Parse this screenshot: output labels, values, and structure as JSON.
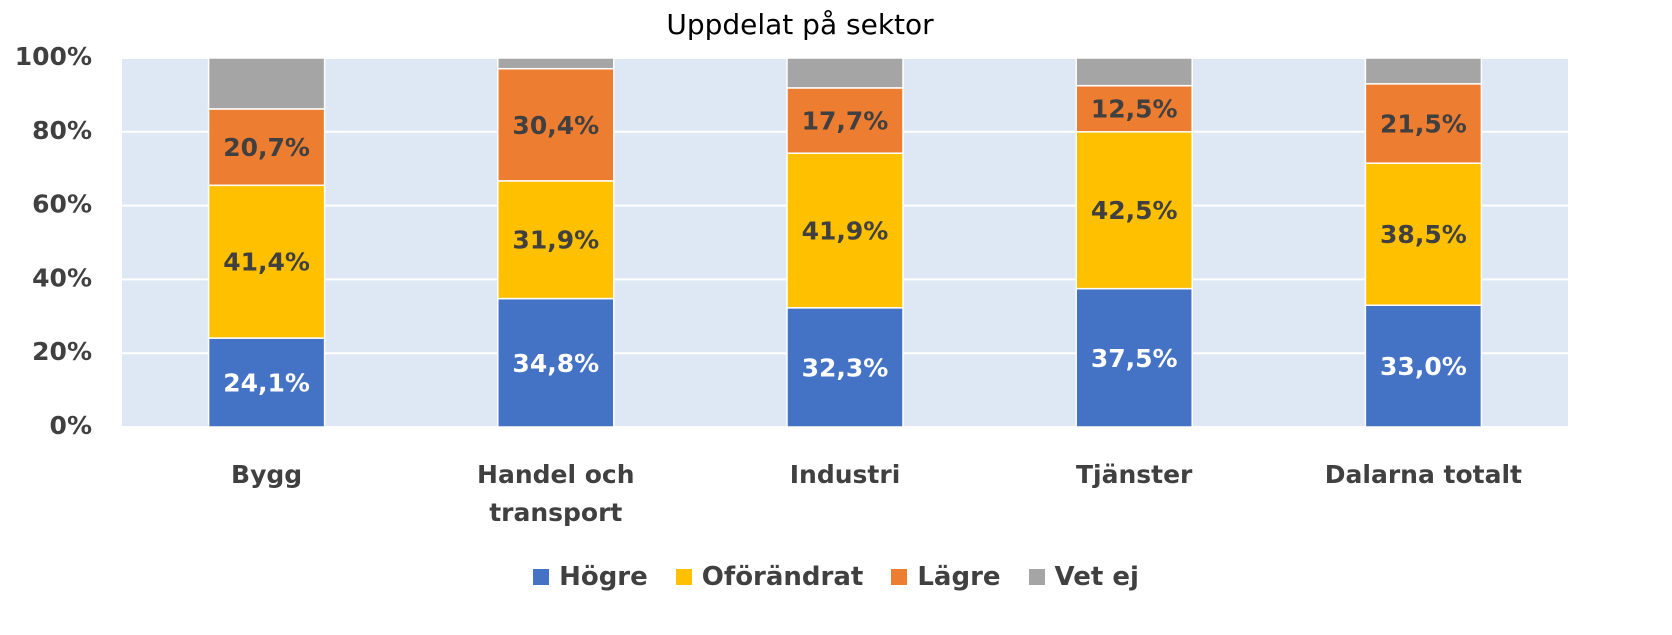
{
  "chart_data": {
    "type": "bar",
    "stacked": true,
    "title": "Uppdelat på sektor",
    "categories": [
      "Bygg",
      "Handel och transport",
      "Industri",
      "Tjänster",
      "Dalarna totalt"
    ],
    "series": [
      {
        "name": "Högre",
        "color": "#4472c4",
        "values": [
          24.1,
          34.8,
          32.3,
          37.5,
          33.0
        ],
        "value_labels": [
          "24,1%",
          "34,8%",
          "32,3%",
          "37,5%",
          "33,0%"
        ]
      },
      {
        "name": "Oförändrat",
        "color": "#ffc000",
        "values": [
          41.4,
          31.9,
          41.9,
          42.5,
          38.5
        ],
        "value_labels": [
          "41,4%",
          "31,9%",
          "41,9%",
          "42,5%",
          "38,5%"
        ]
      },
      {
        "name": "Lägre",
        "color": "#ed7d31",
        "values": [
          20.7,
          30.4,
          17.7,
          12.5,
          21.5
        ],
        "value_labels": [
          "20,7%",
          "30,4%",
          "17,7%",
          "12,5%",
          "21,5%"
        ]
      },
      {
        "name": "Vet ej",
        "color": "#a5a5a5",
        "values": [
          13.8,
          2.9,
          8.1,
          7.5,
          7.0
        ]
      }
    ],
    "ylim": [
      0,
      100
    ],
    "yticks": [
      {
        "value": 0,
        "label": "0%"
      },
      {
        "value": 20,
        "label": "20%"
      },
      {
        "value": 40,
        "label": "40%"
      },
      {
        "value": 60,
        "label": "60%"
      },
      {
        "value": 80,
        "label": "80%"
      },
      {
        "value": 100,
        "label": "100%"
      }
    ],
    "grid": true,
    "legend": "bottom"
  }
}
